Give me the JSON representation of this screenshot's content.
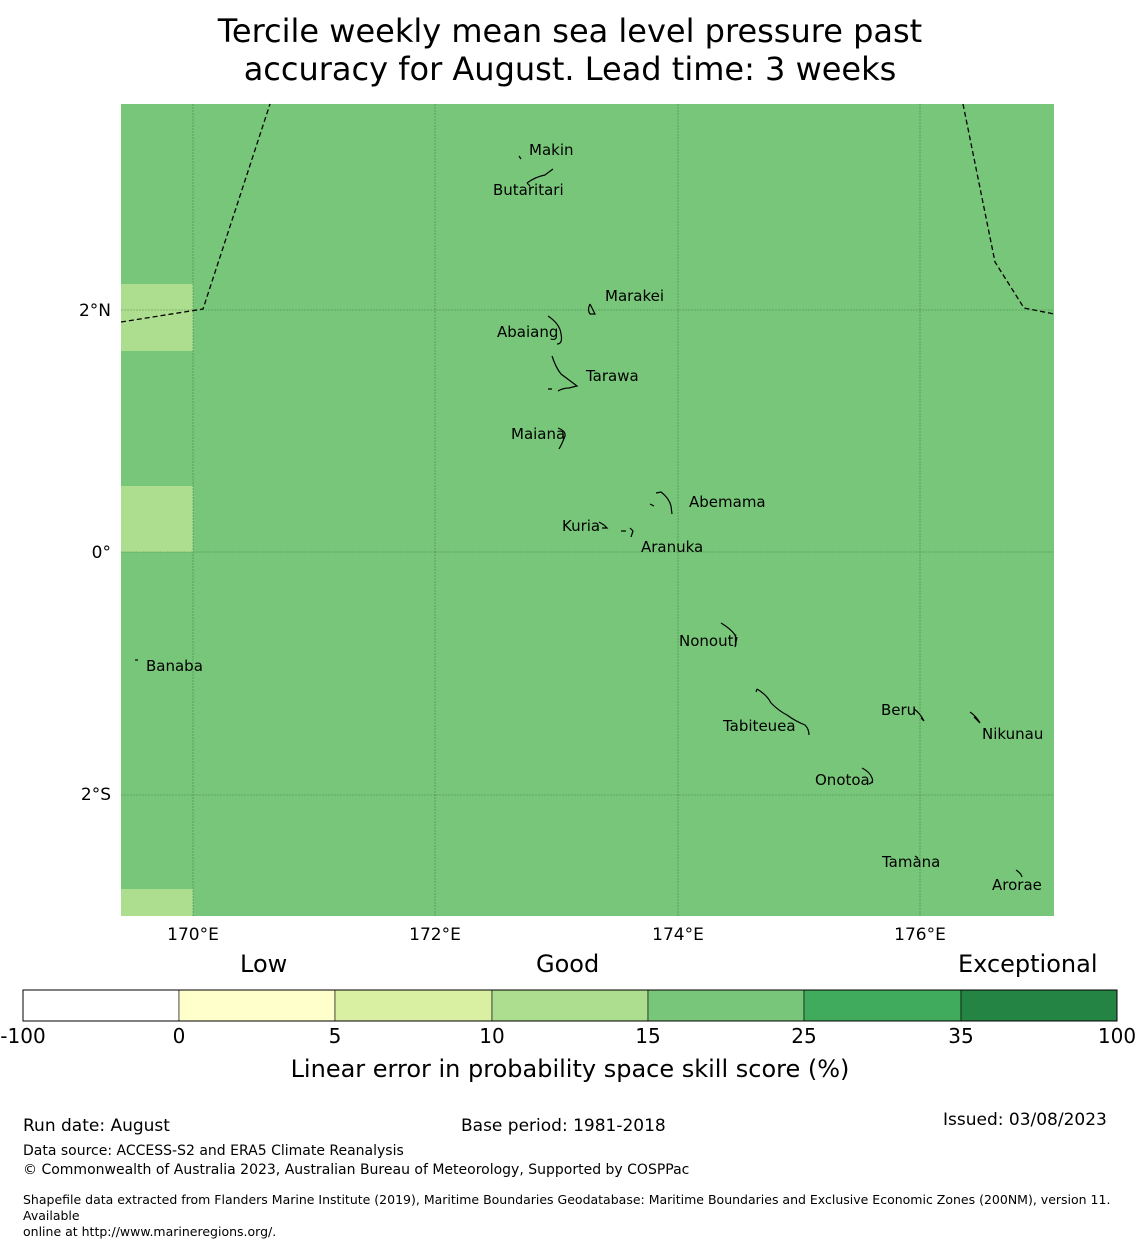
{
  "title": {
    "line1": "Tercile weekly mean sea level pressure past",
    "line2": "accuracy for August. Lead time: 3 weeks"
  },
  "map": {
    "lon_ticks": [
      "170°E",
      "172°E",
      "174°E",
      "176°E"
    ],
    "lat_ticks": [
      "2°N",
      "0°",
      "2°S"
    ],
    "base_color": "#78c679",
    "light_color": "#addd8e",
    "islands": [
      {
        "name": "Makin"
      },
      {
        "name": "Butaritari"
      },
      {
        "name": "Marakei"
      },
      {
        "name": "Abaiang"
      },
      {
        "name": "Tarawa"
      },
      {
        "name": "Maiana"
      },
      {
        "name": "Abemama"
      },
      {
        "name": "Kuria"
      },
      {
        "name": "Aranuka"
      },
      {
        "name": "Nonouti"
      },
      {
        "name": "Banaba"
      },
      {
        "name": "Tabiteuea"
      },
      {
        "name": "Beru"
      },
      {
        "name": "Nikunau"
      },
      {
        "name": "Onotoa"
      },
      {
        "name": "Tamana"
      },
      {
        "name": "Arorae"
      }
    ]
  },
  "colorbar": {
    "category_labels": {
      "low": "Low",
      "good": "Good",
      "exceptional": "Exceptional"
    },
    "bins": [
      {
        "from": "-100",
        "to": "0",
        "color": "#ffffff"
      },
      {
        "from": "0",
        "to": "5",
        "color": "#ffffcc"
      },
      {
        "from": "5",
        "to": "10",
        "color": "#d9f0a3"
      },
      {
        "from": "10",
        "to": "15",
        "color": "#addd8e"
      },
      {
        "from": "15",
        "to": "25",
        "color": "#78c679"
      },
      {
        "from": "25",
        "to": "35",
        "color": "#41ab5d"
      },
      {
        "from": "35",
        "to": "100",
        "color": "#238443"
      }
    ],
    "tick_labels": [
      "-100",
      "0",
      "5",
      "10",
      "15",
      "25",
      "35",
      "100"
    ],
    "axis_label": "Linear error in probability space skill score (%)"
  },
  "footer": {
    "run_date": "Run date: August",
    "base_period": "Base period: 1981-2018",
    "issued": "Issued: 03/08/2023",
    "data_source": "Data source: ACCESS-S2 and ERA5 Climate Reanalysis",
    "copyright": "© Commonwealth of Australia 2023, Australian Bureau of Meteorology, Supported by COSPPac",
    "shapefile_line1": "Shapefile data extracted from Flanders Marine Institute (2019), Maritime Boundaries Geodatabase: Maritime Boundaries and Exclusive Economic Zones (200NM), version 11. Available",
    "shapefile_line2": "online at http://www.marineregions.org/."
  }
}
